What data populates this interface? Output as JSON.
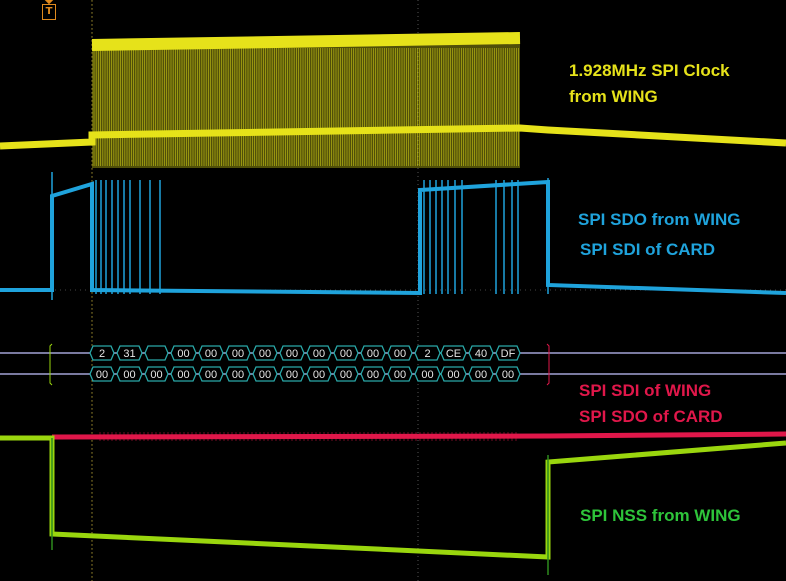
{
  "trigger": {
    "marker_text": "T",
    "color": "#e08a1e"
  },
  "labels": {
    "clock_line1": "1.928MHz SPI Clock",
    "clock_line2": "from WING",
    "sdo_wing": "SPI SDO from WING",
    "sdi_card": "SPI SDI of CARD",
    "sdi_wing": "SPI SDI of WING",
    "sdo_card": "SPI SDO of CARD",
    "nss": "SPI NSS from WING"
  },
  "colors": {
    "clock": "#e6e21a",
    "mosi": "#1fa3dc",
    "miso": "#e0174a",
    "nss": "#9ad60e",
    "nss_label": "#2ec43a",
    "decode": "#2aa8a8",
    "bus_line": "#7a7aa0",
    "grid": "#3a3a3a"
  },
  "decode": {
    "mosi_bytes": [
      "2",
      "31",
      "",
      "00",
      "00",
      "00",
      "00",
      "00",
      "00",
      "00",
      "00",
      "00",
      "2",
      "CE",
      "40",
      "DF"
    ],
    "miso_bytes": [
      "00",
      "00",
      "00",
      "00",
      "00",
      "00",
      "00",
      "00",
      "00",
      "00",
      "00",
      "00",
      "00",
      "00",
      "00",
      "00"
    ]
  }
}
